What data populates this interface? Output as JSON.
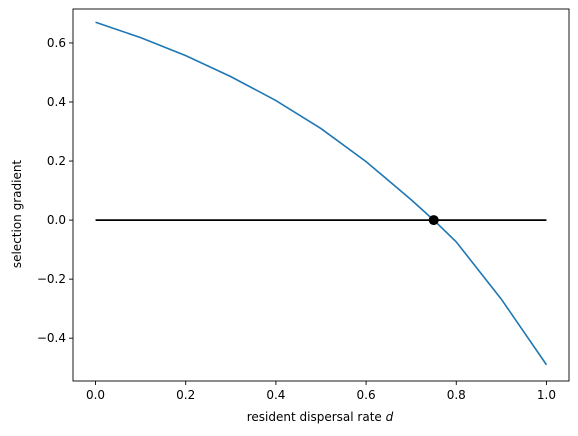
{
  "chart_data": {
    "type": "line",
    "title": "",
    "xlabel": "resident dispersal rate",
    "xlabel_var": "d",
    "ylabel": "selection gradient",
    "xlim": [
      -0.05,
      1.05
    ],
    "ylim": [
      -0.545,
      0.715
    ],
    "xticks": [
      0.0,
      0.2,
      0.4,
      0.6,
      0.8,
      1.0
    ],
    "xtick_labels": [
      "0.0",
      "0.2",
      "0.4",
      "0.6",
      "0.8",
      "1.0"
    ],
    "yticks": [
      -0.4,
      -0.2,
      0.0,
      0.2,
      0.4,
      0.6
    ],
    "ytick_labels": [
      "−0.4",
      "−0.2",
      "0.0",
      "0.2",
      "0.4",
      "0.6"
    ],
    "grid": false,
    "legend": "none",
    "series": [
      {
        "color": "#1f77b4",
        "x": [
          0.0,
          0.1,
          0.2,
          0.3,
          0.4,
          0.5,
          0.6,
          0.7,
          0.75,
          0.8,
          0.9,
          1.0
        ],
        "y": [
          0.67,
          0.618,
          0.557,
          0.486,
          0.405,
          0.31,
          0.198,
          0.069,
          0.0,
          -0.074,
          -0.268,
          -0.49
        ]
      },
      {
        "color": "#000000",
        "x": [
          0.0,
          1.0
        ],
        "y": [
          0.0,
          0.0
        ]
      }
    ],
    "markers": [
      {
        "x": 0.75,
        "y": 0.0,
        "color": "#000000"
      }
    ]
  }
}
